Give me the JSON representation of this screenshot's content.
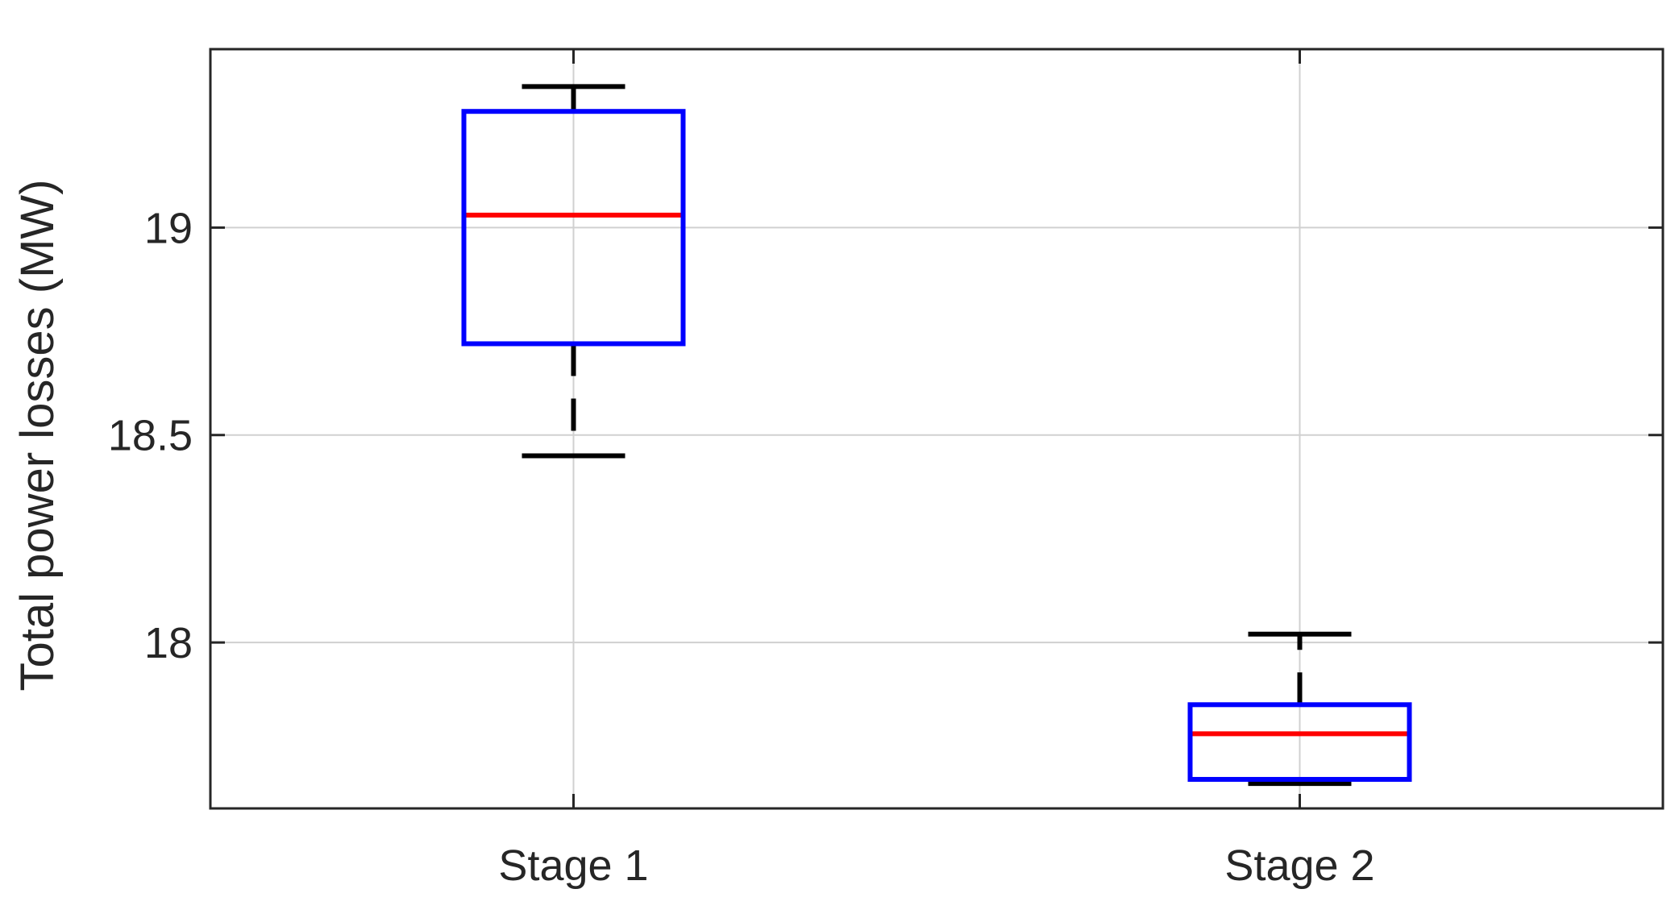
{
  "chart_data": {
    "type": "box",
    "xlabel": "",
    "ylabel": "Total power losses (MW)",
    "title": "",
    "categories": [
      "Stage 1",
      "Stage 2"
    ],
    "ylim": [
      17.6,
      19.43
    ],
    "yticks": [
      18,
      18.5,
      19
    ],
    "ytick_labels": [
      "18",
      "18.5",
      "19"
    ],
    "grid": true,
    "boxes": [
      {
        "category": "Stage 1",
        "whisker_low": 18.45,
        "q1": 18.72,
        "median": 19.03,
        "q3": 19.28,
        "whisker_high": 19.34
      },
      {
        "category": "Stage 2",
        "whisker_low": 17.66,
        "q1": 17.67,
        "median": 17.78,
        "q3": 17.85,
        "whisker_high": 18.02
      }
    ],
    "colors": {
      "box": "#0000ff",
      "median": "#ff0000",
      "whisker": "#000000",
      "grid": "#d0d0d0",
      "axis": "#262626"
    }
  }
}
